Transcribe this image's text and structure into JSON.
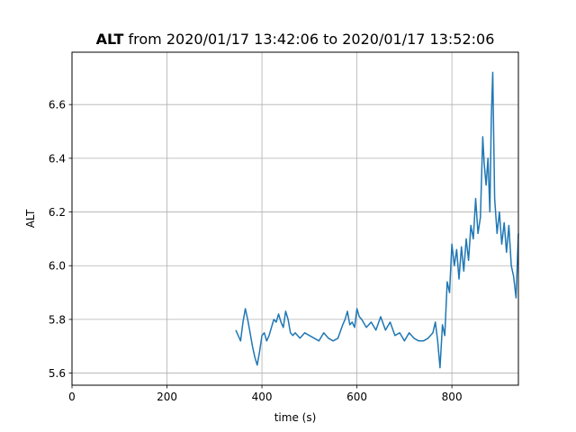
{
  "chart_data": {
    "type": "line",
    "title_bold": "ALT",
    "title_rest": " from 2020/01/17 13:42:06 to 2020/01/17 13:52:06",
    "xlabel": "time (s)",
    "ylabel": "ALT",
    "xlim": [
      0,
      940
    ],
    "ylim": [
      5.555,
      6.795
    ],
    "xticks": [
      0,
      200,
      400,
      600,
      800
    ],
    "yticks": [
      5.6,
      5.8,
      6.0,
      6.2,
      6.4,
      6.6
    ],
    "ytick_labels": [
      "5.6",
      "5.8",
      "6.0",
      "6.2",
      "6.4",
      "6.6"
    ],
    "grid": true,
    "line_color": "#1f77b4",
    "series": [
      {
        "x": [
          345,
          350,
          355,
          360,
          365,
          370,
          375,
          380,
          385,
          390,
          395,
          400,
          405,
          410,
          415,
          420,
          425,
          430,
          435,
          440,
          445,
          450,
          455,
          460,
          465,
          470,
          475,
          480,
          490,
          500,
          510,
          520,
          530,
          540,
          550,
          560,
          570,
          575,
          580,
          585,
          590,
          595,
          600,
          605,
          610,
          620,
          630,
          640,
          650,
          660,
          670,
          680,
          690,
          700,
          710,
          720,
          730,
          740,
          750,
          760,
          765,
          770,
          775,
          780,
          785,
          790,
          795,
          800,
          805,
          810,
          815,
          820,
          825,
          830,
          835,
          840,
          845,
          850,
          855,
          860,
          865,
          868,
          872,
          876,
          880,
          883,
          886,
          890,
          895,
          900,
          905,
          910,
          915,
          920,
          925,
          930,
          935,
          940
        ],
        "y": [
          5.76,
          5.74,
          5.72,
          5.79,
          5.84,
          5.8,
          5.75,
          5.7,
          5.66,
          5.63,
          5.68,
          5.74,
          5.75,
          5.72,
          5.74,
          5.77,
          5.8,
          5.79,
          5.82,
          5.79,
          5.77,
          5.83,
          5.8,
          5.75,
          5.74,
          5.75,
          5.74,
          5.73,
          5.75,
          5.74,
          5.73,
          5.72,
          5.75,
          5.73,
          5.72,
          5.73,
          5.78,
          5.8,
          5.83,
          5.78,
          5.79,
          5.77,
          5.84,
          5.81,
          5.8,
          5.77,
          5.79,
          5.76,
          5.81,
          5.76,
          5.79,
          5.74,
          5.75,
          5.72,
          5.75,
          5.73,
          5.72,
          5.72,
          5.73,
          5.75,
          5.79,
          5.72,
          5.62,
          5.78,
          5.74,
          5.94,
          5.9,
          6.08,
          6.0,
          6.06,
          5.95,
          6.07,
          5.98,
          6.1,
          6.02,
          6.15,
          6.1,
          6.25,
          6.12,
          6.18,
          6.48,
          6.38,
          6.3,
          6.4,
          6.2,
          6.55,
          6.72,
          6.25,
          6.12,
          6.2,
          6.08,
          6.16,
          6.05,
          6.15,
          6.0,
          5.96,
          5.88,
          6.12
        ]
      }
    ]
  }
}
